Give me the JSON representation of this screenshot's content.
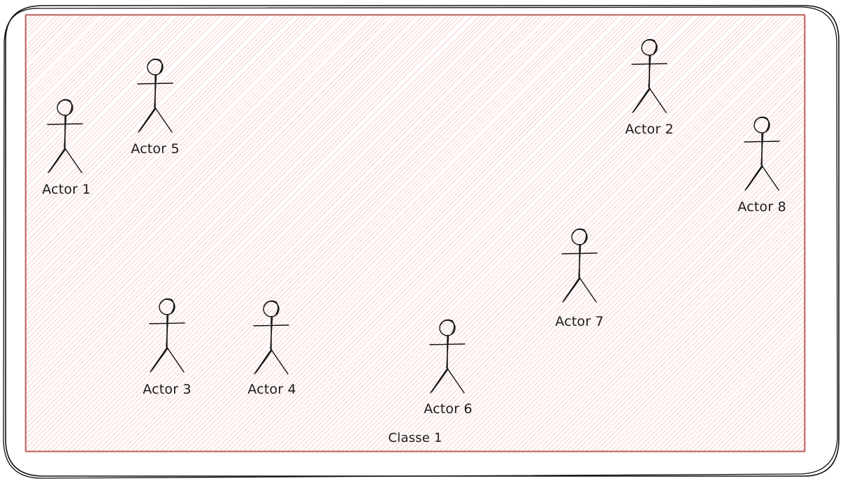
{
  "diagram": {
    "container": {
      "label": "Classe 1",
      "stroke_color": "#b85450",
      "hatch_color": "#f8cecc"
    },
    "actors": [
      {
        "id": "actor-1",
        "label": "Actor 1"
      },
      {
        "id": "actor-2",
        "label": "Actor 2"
      },
      {
        "id": "actor-3",
        "label": "Actor 3"
      },
      {
        "id": "actor-4",
        "label": "Actor 4"
      },
      {
        "id": "actor-5",
        "label": "Actor 5"
      },
      {
        "id": "actor-6",
        "label": "Actor 6"
      },
      {
        "id": "actor-7",
        "label": "Actor 7"
      },
      {
        "id": "actor-8",
        "label": "Actor 8"
      }
    ]
  }
}
